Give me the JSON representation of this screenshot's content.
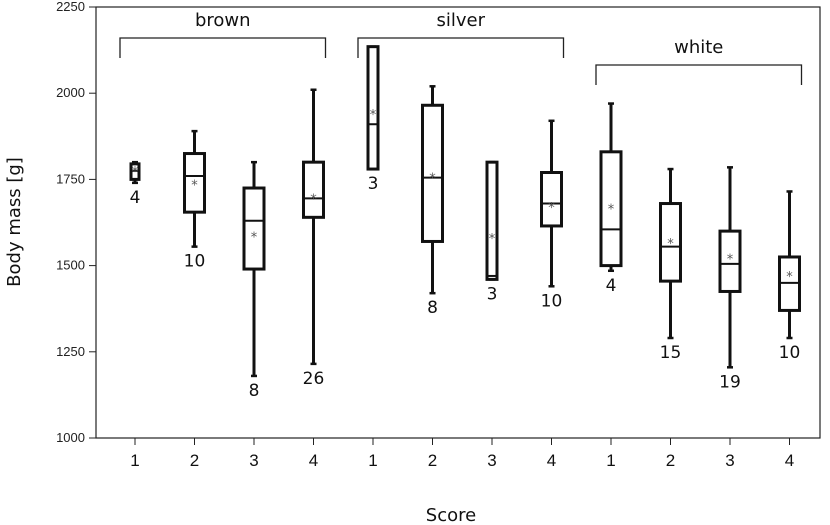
{
  "chart_data": {
    "type": "boxplot",
    "xlabel": "Score",
    "ylabel": "Body mass [g]",
    "ylim": [
      1000,
      2250
    ],
    "yticks": [
      1000,
      1250,
      1500,
      1750,
      2000,
      2250
    ],
    "grid": false,
    "groups": [
      {
        "name": "brown",
        "boxes": [
          {
            "score": "1",
            "whisker_low": 1740,
            "q1": 1750,
            "median": 1775,
            "q3": 1795,
            "whisker_high": 1800,
            "mean": 1775,
            "n": "4"
          },
          {
            "score": "2",
            "whisker_low": 1555,
            "q1": 1655,
            "median": 1760,
            "q3": 1825,
            "whisker_high": 1890,
            "mean": 1735,
            "n": "10"
          },
          {
            "score": "3",
            "whisker_low": 1180,
            "q1": 1490,
            "median": 1630,
            "q3": 1725,
            "whisker_high": 1800,
            "mean": 1585,
            "n": "8"
          },
          {
            "score": "4",
            "whisker_low": 1215,
            "q1": 1640,
            "median": 1695,
            "q3": 1800,
            "whisker_high": 2010,
            "mean": 1695,
            "n": "26"
          }
        ]
      },
      {
        "name": "silver",
        "boxes": [
          {
            "score": "1",
            "whisker_low": 1780,
            "q1": 1780,
            "median": 1910,
            "q3": 2135,
            "whisker_high": 2135,
            "mean": 1940,
            "n": "3"
          },
          {
            "score": "2",
            "whisker_low": 1420,
            "q1": 1570,
            "median": 1755,
            "q3": 1965,
            "whisker_high": 2020,
            "mean": 1755,
            "n": "8"
          },
          {
            "score": "3",
            "whisker_low": 1460,
            "q1": 1460,
            "median": 1470,
            "q3": 1800,
            "whisker_high": 1800,
            "mean": 1580,
            "n": "3"
          },
          {
            "score": "4",
            "whisker_low": 1440,
            "q1": 1615,
            "median": 1680,
            "q3": 1770,
            "whisker_high": 1920,
            "mean": 1670,
            "n": "10"
          }
        ]
      },
      {
        "name": "white",
        "boxes": [
          {
            "score": "1",
            "whisker_low": 1485,
            "q1": 1500,
            "median": 1605,
            "q3": 1830,
            "whisker_high": 1970,
            "mean": 1665,
            "n": "4"
          },
          {
            "score": "2",
            "whisker_low": 1290,
            "q1": 1455,
            "median": 1555,
            "q3": 1680,
            "whisker_high": 1780,
            "mean": 1565,
            "n": "15"
          },
          {
            "score": "3",
            "whisker_low": 1205,
            "q1": 1425,
            "median": 1505,
            "q3": 1600,
            "whisker_high": 1785,
            "mean": 1520,
            "n": "19"
          },
          {
            "score": "4",
            "whisker_low": 1290,
            "q1": 1370,
            "median": 1450,
            "q3": 1525,
            "whisker_high": 1715,
            "mean": 1470,
            "n": "10"
          }
        ]
      }
    ]
  }
}
